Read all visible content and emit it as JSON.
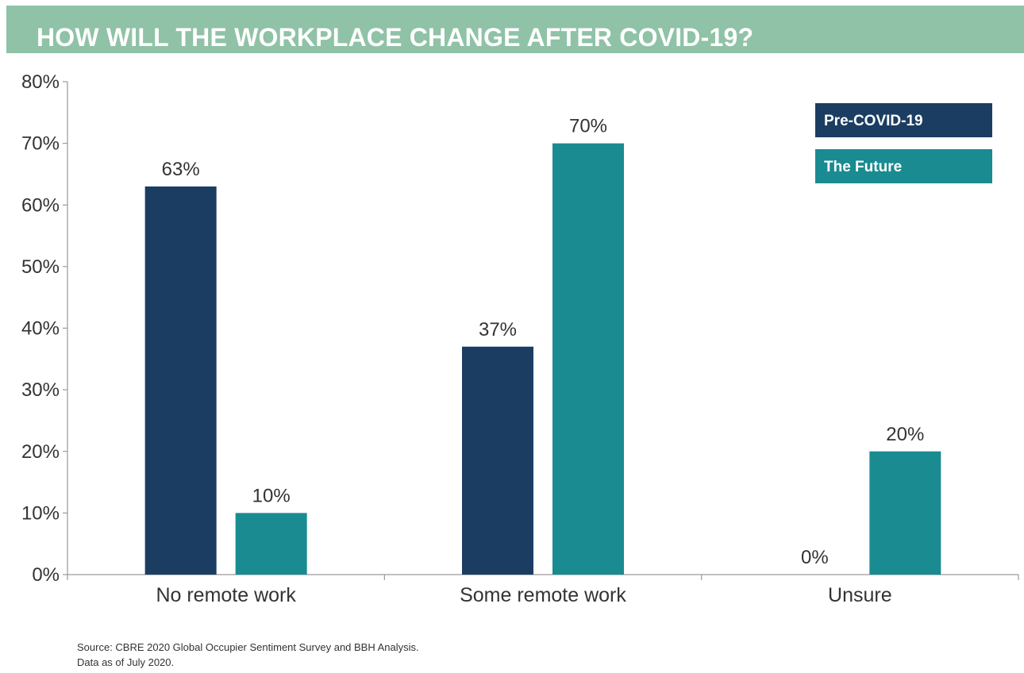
{
  "title": "HOW WILL THE WORKPLACE CHANGE AFTER COVID-19?",
  "source_lines": [
    "Source: CBRE 2020 Global Occupier Sentiment Survey and BBH Analysis.",
    "Data as of July 2020."
  ],
  "colors": {
    "title_bar": "#8fc2a6",
    "pre_covid": "#1b3d62",
    "future": "#1a8b91"
  },
  "chart_data": {
    "type": "bar",
    "title": "HOW WILL THE WORKPLACE CHANGE AFTER COVID-19?",
    "categories": [
      "No remote work",
      "Some remote work",
      "Unsure"
    ],
    "series": [
      {
        "name": "Pre-COVID-19",
        "values": [
          63,
          37,
          0
        ],
        "labels": [
          "63%",
          "37%",
          "0%"
        ]
      },
      {
        "name": "The Future",
        "values": [
          10,
          70,
          20
        ],
        "labels": [
          "10%",
          "70%",
          "20%"
        ]
      }
    ],
    "ylim": [
      0,
      80
    ],
    "yticks": [
      "0%",
      "10%",
      "20%",
      "30%",
      "40%",
      "50%",
      "60%",
      "70%",
      "80%"
    ],
    "xlabel": "",
    "ylabel": "",
    "grid": false,
    "legend": "top-right"
  }
}
